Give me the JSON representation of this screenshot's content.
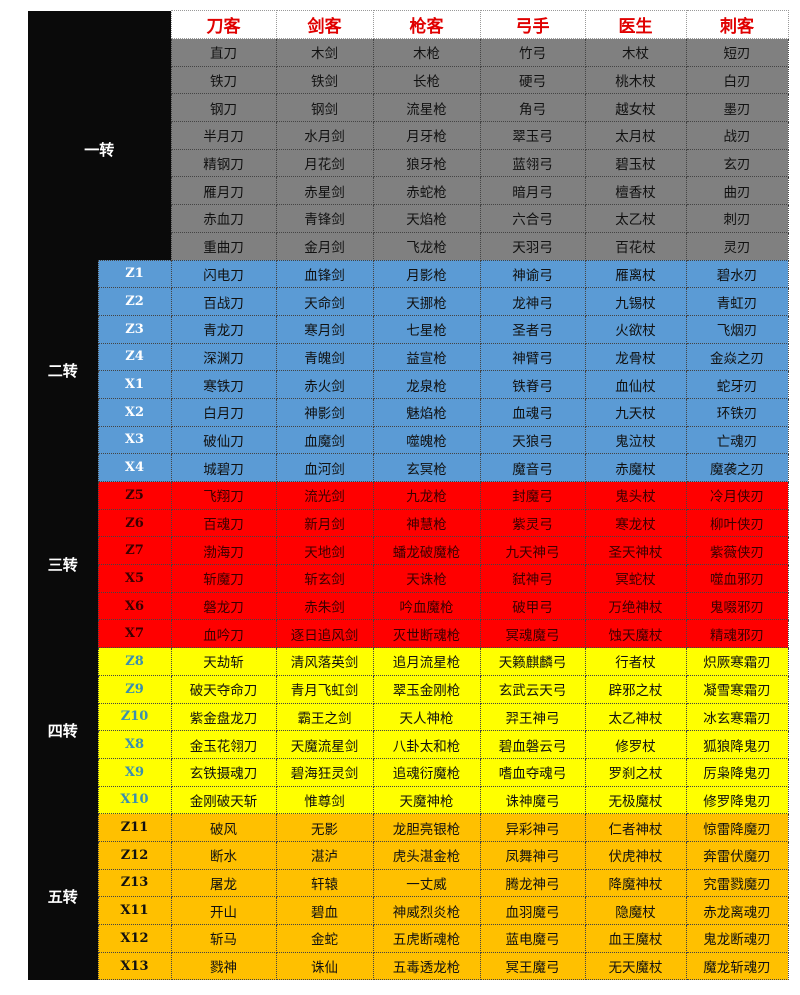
{
  "headers": [
    "刀客",
    "剑客",
    "枪客",
    "弓手",
    "医生",
    "刺客"
  ],
  "colors": {
    "tier1": "#808080",
    "tier2": "#5b9bd5",
    "tier3": "#ff0000",
    "tier4": "#ffff00",
    "tier5": "#ffc000",
    "tier_label_bg": "#0a0a0a",
    "header_text": "#e00000"
  },
  "tiers": [
    {
      "label": "一转",
      "rows": [
        {
          "code": "",
          "cells": [
            "直刀",
            "木剑",
            "木枪",
            "竹弓",
            "木杖",
            "短刃"
          ]
        },
        {
          "code": "",
          "cells": [
            "铁刀",
            "铁剑",
            "长枪",
            "硬弓",
            "桃木杖",
            "白刃"
          ]
        },
        {
          "code": "",
          "cells": [
            "钢刀",
            "钢剑",
            "流星枪",
            "角弓",
            "越女杖",
            "墨刃"
          ]
        },
        {
          "code": "",
          "cells": [
            "半月刀",
            "水月剑",
            "月牙枪",
            "翠玉弓",
            "太月杖",
            "战刃"
          ]
        },
        {
          "code": "",
          "cells": [
            "精钢刀",
            "月花剑",
            "狼牙枪",
            "蓝翎弓",
            "碧玉杖",
            "玄刃"
          ]
        },
        {
          "code": "",
          "cells": [
            "雁月刀",
            "赤星剑",
            "赤蛇枪",
            "暗月弓",
            "檀香杖",
            "曲刃"
          ]
        },
        {
          "code": "",
          "cells": [
            "赤血刀",
            "青锋剑",
            "天焰枪",
            "六合弓",
            "太乙杖",
            "刺刃"
          ]
        },
        {
          "code": "",
          "cells": [
            "重曲刀",
            "金月剑",
            "飞龙枪",
            "天羽弓",
            "百花杖",
            "灵刃"
          ]
        }
      ]
    },
    {
      "label": "二转",
      "rows": [
        {
          "code": "Z1",
          "cells": [
            "闪电刀",
            "血锋剑",
            "月影枪",
            "神谕弓",
            "雁离杖",
            "碧水刃"
          ]
        },
        {
          "code": "Z2",
          "cells": [
            "百战刀",
            "天命剑",
            "天挪枪",
            "龙神弓",
            "九锡杖",
            "青虹刃"
          ]
        },
        {
          "code": "Z3",
          "cells": [
            "青龙刀",
            "寒月剑",
            "七星枪",
            "圣者弓",
            "火欲杖",
            "飞烟刃"
          ]
        },
        {
          "code": "Z4",
          "cells": [
            "深渊刀",
            "青魄剑",
            "益宣枪",
            "神臂弓",
            "龙骨杖",
            "金焱之刃"
          ]
        },
        {
          "code": "X1",
          "cells": [
            "寒铁刀",
            "赤火剑",
            "龙泉枪",
            "铁脊弓",
            "血仙杖",
            "蛇牙刃"
          ]
        },
        {
          "code": "X2",
          "cells": [
            "白月刀",
            "神影剑",
            "魅焰枪",
            "血魂弓",
            "九天杖",
            "环铁刃"
          ]
        },
        {
          "code": "X3",
          "cells": [
            "破仙刀",
            "血魔剑",
            "噬魄枪",
            "天狼弓",
            "鬼泣杖",
            "亡魂刃"
          ]
        },
        {
          "code": "X4",
          "cells": [
            "城碧刀",
            "血河剑",
            "玄冥枪",
            "魔音弓",
            "赤魔杖",
            "魔袭之刃"
          ]
        }
      ]
    },
    {
      "label": "三转",
      "rows": [
        {
          "code": "Z5",
          "cells": [
            "飞翔刀",
            "流光剑",
            "九龙枪",
            "封魔弓",
            "鬼头杖",
            "冷月侠刃"
          ]
        },
        {
          "code": "Z6",
          "cells": [
            "百魂刀",
            "新月剑",
            "神慧枪",
            "紫灵弓",
            "寒龙杖",
            "柳叶侠刃"
          ]
        },
        {
          "code": "Z7",
          "cells": [
            "渤海刀",
            "天地剑",
            "蟠龙破魔枪",
            "九天神弓",
            "圣天神杖",
            "紫薇侠刃"
          ]
        },
        {
          "code": "X5",
          "cells": [
            "斩魔刀",
            "斩玄剑",
            "天诛枪",
            "弑神弓",
            "冥蛇杖",
            "噬血邪刃"
          ]
        },
        {
          "code": "X6",
          "cells": [
            "磐龙刀",
            "赤朱剑",
            "吟血魔枪",
            "破甲弓",
            "万绝神杖",
            "鬼啜邪刃"
          ]
        },
        {
          "code": "X7",
          "cells": [
            "血吟刀",
            "逐日追风剑",
            "灭世断魂枪",
            "冥魂魔弓",
            "蚀天魔杖",
            "精魂邪刃"
          ]
        }
      ]
    },
    {
      "label": "四转",
      "rows": [
        {
          "code": "Z8",
          "cells": [
            "天劫斩",
            "清风落英剑",
            "追月流星枪",
            "天籁麒麟弓",
            "行者杖",
            "炽厥寒霜刃"
          ]
        },
        {
          "code": "Z9",
          "cells": [
            "破天夺命刀",
            "青月飞虹剑",
            "翠玉金刚枪",
            "玄武云天弓",
            "辟邪之杖",
            "凝雪寒霜刃"
          ]
        },
        {
          "code": "Z10",
          "cells": [
            "紫金盘龙刀",
            "霸王之剑",
            "天人神枪",
            "羿王神弓",
            "太乙神杖",
            "冰玄寒霜刃"
          ]
        },
        {
          "code": "X8",
          "cells": [
            "金玉花翎刀",
            "天魔流星剑",
            "八卦太和枪",
            "碧血磐云弓",
            "修罗杖",
            "狐狼降鬼刃"
          ]
        },
        {
          "code": "X9",
          "cells": [
            "玄铁摄魂刀",
            "碧海狂灵剑",
            "追魂衍魔枪",
            "嗜血夺魂弓",
            "罗刹之杖",
            "厉枭降鬼刃"
          ]
        },
        {
          "code": "X10",
          "cells": [
            "金刚破天斩",
            "惟尊剑",
            "天魔神枪",
            "诛神魔弓",
            "无极魔杖",
            "修罗降鬼刃"
          ]
        }
      ]
    },
    {
      "label": "五转",
      "rows": [
        {
          "code": "Z11",
          "cells": [
            "破风",
            "无影",
            "龙胆亮银枪",
            "异彩神弓",
            "仁者神杖",
            "惊雷降魔刃"
          ]
        },
        {
          "code": "Z12",
          "cells": [
            "断水",
            "湛泸",
            "虎头湛金枪",
            "凤舞神弓",
            "伏虎神杖",
            "奔雷伏魔刃"
          ]
        },
        {
          "code": "Z13",
          "cells": [
            "屠龙",
            "轩辕",
            "一丈威",
            "腾龙神弓",
            "降魔神杖",
            "究雷戮魔刃"
          ]
        },
        {
          "code": "X11",
          "cells": [
            "开山",
            "碧血",
            "神威烈炎枪",
            "血羽魔弓",
            "隐魔杖",
            "赤龙离魂刃"
          ]
        },
        {
          "code": "X12",
          "cells": [
            "斩马",
            "金蛇",
            "五虎断魂枪",
            "蓝电魔弓",
            "血王魔杖",
            "鬼龙断魂刃"
          ]
        },
        {
          "code": "X13",
          "cells": [
            "戮神",
            "诛仙",
            "五毒透龙枪",
            "冥王魔弓",
            "无天魔杖",
            "魔龙斩魂刃"
          ]
        }
      ]
    }
  ]
}
